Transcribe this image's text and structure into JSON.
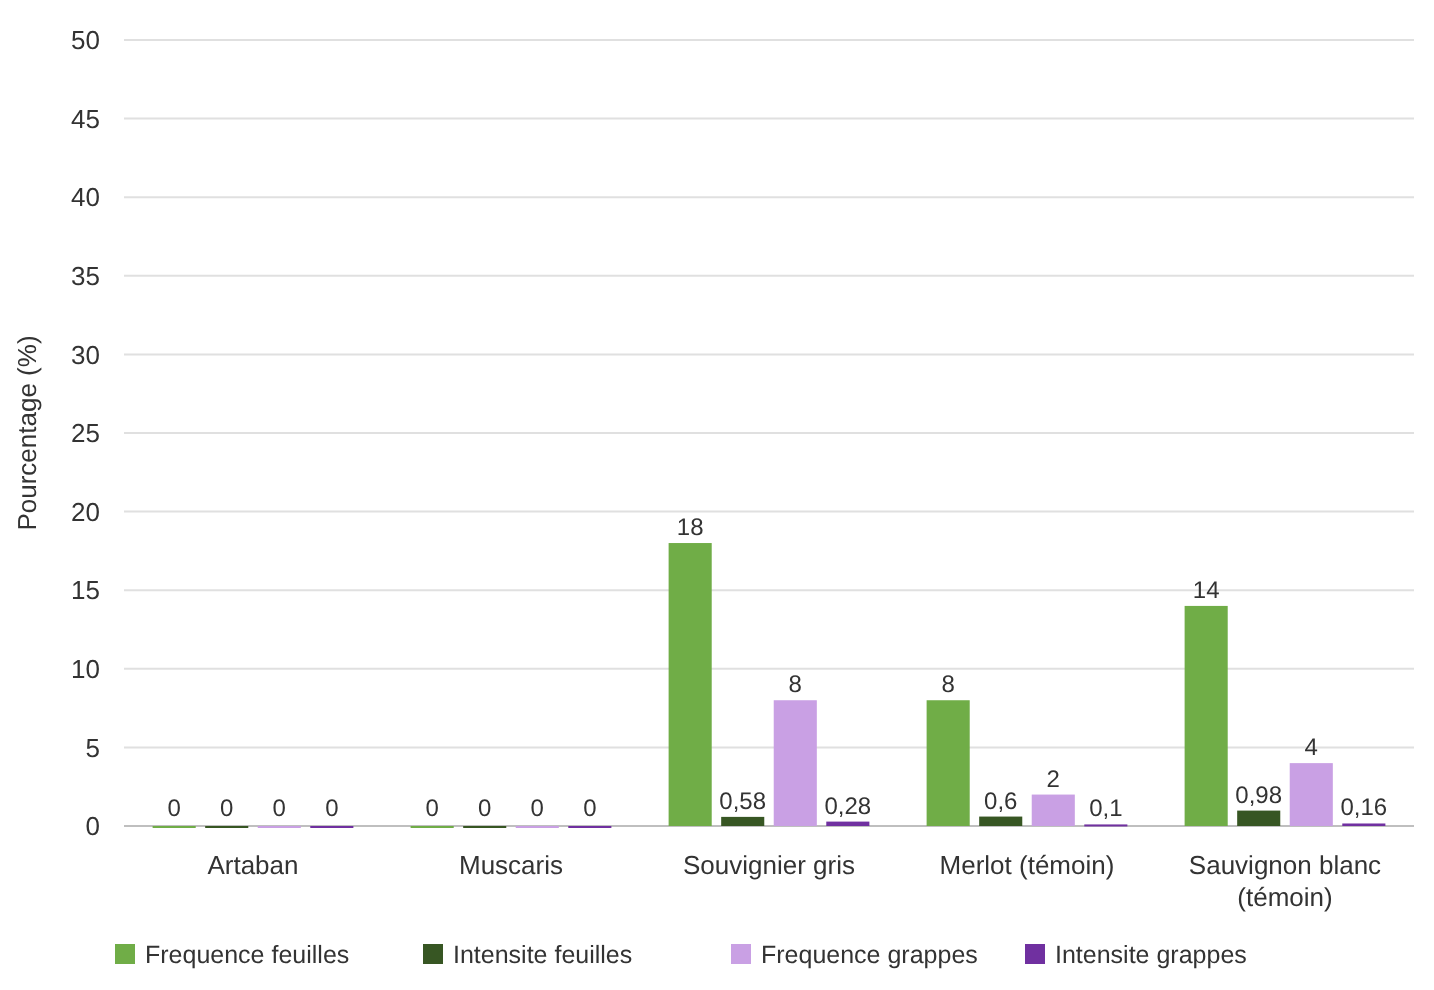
{
  "chart_data": {
    "type": "bar",
    "ylabel": "Pourcentage (%)",
    "categories": [
      "Artaban",
      "Muscaris",
      "Souvignier gris",
      "Merlot (témoin)",
      "Sauvignon blanc (témoin)"
    ],
    "series": [
      {
        "name": "Frequence feuilles",
        "color": "#70ad47",
        "values": [
          0,
          0,
          18,
          8,
          14
        ],
        "value_labels": [
          "0",
          "0",
          "18",
          "8",
          "14"
        ]
      },
      {
        "name": "Intensite feuilles",
        "color": "#375623",
        "values": [
          0,
          0,
          0.58,
          0.6,
          0.98
        ],
        "value_labels": [
          "0",
          "0",
          "0,58",
          "0,6",
          "0,98"
        ]
      },
      {
        "name": "Frequence grappes",
        "color": "#c9a0e4",
        "values": [
          0,
          0,
          8,
          2,
          4
        ],
        "value_labels": [
          "0",
          "0",
          "8",
          "2",
          "4"
        ]
      },
      {
        "name": "Intensite grappes",
        "color": "#7030a0",
        "values": [
          0,
          0,
          0.28,
          0.1,
          0.16
        ],
        "value_labels": [
          "0",
          "0",
          "0,28",
          "0,1",
          "0,16"
        ]
      }
    ],
    "ylim": [
      0,
      50
    ],
    "yticks": [
      0,
      5,
      10,
      15,
      20,
      25,
      30,
      35,
      40,
      45,
      50
    ],
    "grid": "y",
    "legend": "bottom"
  }
}
